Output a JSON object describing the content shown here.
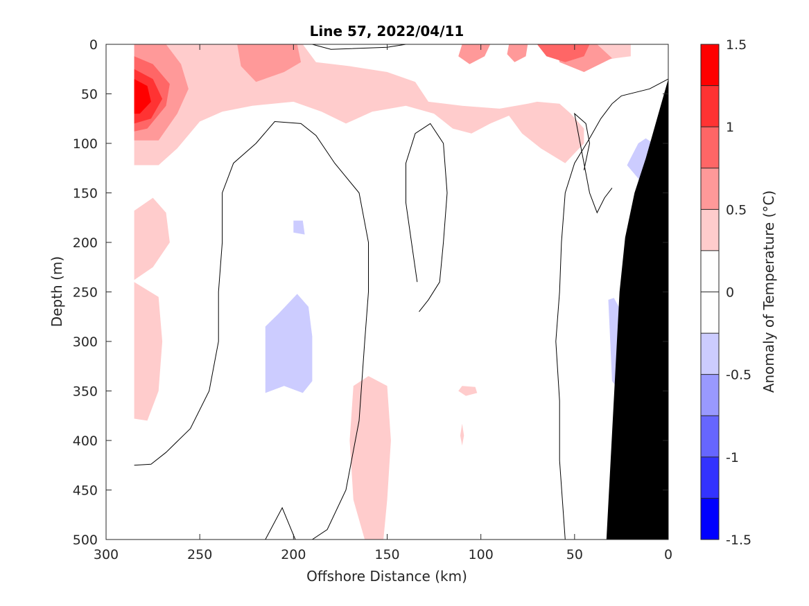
{
  "chart_data": {
    "type": "contour",
    "title": "Line 57, 2022/04/11",
    "xlabel": "Offshore Distance (km)",
    "ylabel": "Depth (m)",
    "xlim": [
      300,
      0
    ],
    "ylim": [
      500,
      0
    ],
    "x_reversed": true,
    "y_reversed": true,
    "xticks": [
      300,
      250,
      200,
      150,
      100,
      50,
      0
    ],
    "yticks": [
      0,
      50,
      100,
      150,
      200,
      250,
      300,
      350,
      400,
      450,
      500
    ],
    "xtick_labels": [
      "300",
      "250",
      "200",
      "150",
      "100",
      "50",
      "0"
    ],
    "ytick_labels": [
      "0",
      "50",
      "100",
      "150",
      "200",
      "250",
      "300",
      "350",
      "400",
      "450",
      "500"
    ],
    "colorbar": {
      "label": "Anomaly of Temperature (°C)",
      "limits": [
        -1.5,
        1.5
      ],
      "ticks": [
        1.5,
        1,
        0.5,
        0,
        -0.5,
        -1,
        -1.5
      ],
      "tick_labels": [
        "1.5",
        "1",
        "0.5",
        "0",
        "-0.5",
        "-1",
        "-1.5"
      ],
      "levels": [
        1.5,
        1.25,
        1.0,
        0.75,
        0.5,
        0.25,
        0,
        -0.25,
        -0.5,
        -0.75,
        -1.0,
        -1.25,
        -1.5
      ],
      "colors": [
        "#ff0000",
        "#ff3333",
        "#ff6666",
        "#ff9999",
        "#ffcccc",
        "#ffffff",
        "#ffffff",
        "#ccccff",
        "#9999ff",
        "#6666ff",
        "#3333ff",
        "#0000ff"
      ]
    },
    "bathymetry_color": "#000000",
    "data_extent_km": [
      285,
      0
    ],
    "bathymetry": [
      [
        33,
        500
      ],
      [
        26,
        250
      ],
      [
        23,
        195
      ],
      [
        18,
        150
      ],
      [
        12,
        115
      ],
      [
        6,
        75
      ],
      [
        0,
        35
      ]
    ],
    "filled_regions": [
      {
        "level": 0.25,
        "points": [
          [
            285,
            0
          ],
          [
            195,
            0
          ],
          [
            188,
            18
          ],
          [
            170,
            22
          ],
          [
            150,
            28
          ],
          [
            135,
            38
          ],
          [
            128,
            58
          ],
          [
            110,
            62
          ],
          [
            90,
            65
          ],
          [
            75,
            60
          ],
          [
            70,
            58
          ],
          [
            58,
            60
          ],
          [
            52,
            70
          ],
          [
            45,
            85
          ],
          [
            45,
            100
          ],
          [
            55,
            120
          ],
          [
            68,
            105
          ],
          [
            78,
            90
          ],
          [
            85,
            72
          ],
          [
            95,
            80
          ],
          [
            105,
            90
          ],
          [
            115,
            85
          ],
          [
            125,
            70
          ],
          [
            140,
            62
          ],
          [
            158,
            68
          ],
          [
            172,
            80
          ],
          [
            185,
            68
          ],
          [
            200,
            58
          ],
          [
            222,
            62
          ],
          [
            238,
            68
          ],
          [
            250,
            78
          ],
          [
            262,
            105
          ],
          [
            272,
            122
          ],
          [
            285,
            122
          ]
        ]
      },
      {
        "level": 0.25,
        "points": [
          [
            115,
            0
          ],
          [
            60,
            0
          ],
          [
            52,
            8
          ],
          [
            40,
            18
          ],
          [
            28,
            14
          ],
          [
            20,
            12
          ],
          [
            20,
            0
          ]
        ]
      },
      {
        "level": 0.5,
        "points": [
          [
            285,
            0
          ],
          [
            268,
            0
          ],
          [
            260,
            20
          ],
          [
            256,
            45
          ],
          [
            262,
            70
          ],
          [
            272,
            97
          ],
          [
            285,
            97
          ]
        ]
      },
      {
        "level": 0.5,
        "points": [
          [
            230,
            0
          ],
          [
            198,
            0
          ],
          [
            196,
            18
          ],
          [
            205,
            28
          ],
          [
            220,
            38
          ],
          [
            228,
            22
          ]
        ]
      },
      {
        "level": 0.5,
        "points": [
          [
            60,
            0
          ],
          [
            38,
            0
          ],
          [
            30,
            14
          ],
          [
            45,
            28
          ],
          [
            58,
            18
          ]
        ]
      },
      {
        "level": 0.5,
        "points": [
          [
            110,
            0
          ],
          [
            95,
            0
          ],
          [
            98,
            12
          ],
          [
            106,
            20
          ],
          [
            112,
            12
          ]
        ]
      },
      {
        "level": 0.5,
        "points": [
          [
            85,
            0
          ],
          [
            75,
            0
          ],
          [
            76,
            12
          ],
          [
            82,
            18
          ],
          [
            86,
            10
          ]
        ]
      },
      {
        "level": 0.75,
        "points": [
          [
            285,
            12
          ],
          [
            275,
            20
          ],
          [
            266,
            40
          ],
          [
            268,
            62
          ],
          [
            278,
            85
          ],
          [
            285,
            88
          ]
        ]
      },
      {
        "level": 0.75,
        "points": [
          [
            70,
            0
          ],
          [
            42,
            0
          ],
          [
            45,
            12
          ],
          [
            55,
            18
          ],
          [
            65,
            12
          ]
        ]
      },
      {
        "level": 1.0,
        "points": [
          [
            285,
            25
          ],
          [
            275,
            35
          ],
          [
            270,
            55
          ],
          [
            276,
            75
          ],
          [
            285,
            80
          ]
        ]
      },
      {
        "level": 1.25,
        "points": [
          [
            285,
            35
          ],
          [
            278,
            42
          ],
          [
            276,
            58
          ],
          [
            282,
            70
          ],
          [
            285,
            70
          ]
        ]
      },
      {
        "level": 0.25,
        "points": [
          [
            285,
            168
          ],
          [
            275,
            155
          ],
          [
            268,
            170
          ],
          [
            266,
            200
          ],
          [
            275,
            225
          ],
          [
            285,
            238
          ]
        ]
      },
      {
        "level": 0.25,
        "points": [
          [
            285,
            240
          ],
          [
            272,
            255
          ],
          [
            270,
            300
          ],
          [
            272,
            350
          ],
          [
            278,
            380
          ],
          [
            285,
            378
          ]
        ]
      },
      {
        "level": 0.25,
        "points": [
          [
            168,
            345
          ],
          [
            160,
            335
          ],
          [
            150,
            345
          ],
          [
            148,
            400
          ],
          [
            150,
            460
          ],
          [
            152,
            500
          ],
          [
            162,
            500
          ],
          [
            168,
            460
          ],
          [
            170,
            400
          ]
        ]
      },
      {
        "level": 0.25,
        "points": [
          [
            110,
            345
          ],
          [
            103,
            346
          ],
          [
            102,
            352
          ],
          [
            108,
            355
          ],
          [
            112,
            350
          ]
        ]
      },
      {
        "level": 0.25,
        "points": [
          [
            110,
            383
          ],
          [
            109,
            395
          ],
          [
            110,
            405
          ],
          [
            111,
            395
          ]
        ]
      },
      {
        "level": -0.25,
        "points": [
          [
            215,
            285
          ],
          [
            208,
            272
          ],
          [
            198,
            252
          ],
          [
            192,
            265
          ],
          [
            190,
            295
          ],
          [
            190,
            340
          ],
          [
            195,
            352
          ],
          [
            205,
            345
          ],
          [
            215,
            352
          ]
        ]
      },
      {
        "level": -0.25,
        "points": [
          [
            200,
            178
          ],
          [
            195,
            178
          ],
          [
            194,
            192
          ],
          [
            200,
            190
          ]
        ]
      },
      {
        "level": -0.25,
        "points": [
          [
            22,
            122
          ],
          [
            16,
            100
          ],
          [
            12,
            95
          ],
          [
            8,
            100
          ],
          [
            14,
            140
          ]
        ]
      },
      {
        "level": -0.25,
        "points": [
          [
            32,
            258
          ],
          [
            29,
            256
          ],
          [
            25,
            270
          ],
          [
            24,
            300
          ],
          [
            26,
            350
          ],
          [
            30,
            340
          ]
        ]
      }
    ],
    "zero_contours": [
      [
        [
          285,
          425
        ],
        [
          276,
          424
        ],
        [
          268,
          412
        ],
        [
          255,
          388
        ],
        [
          245,
          350
        ],
        [
          240,
          300
        ],
        [
          240,
          250
        ],
        [
          238,
          200
        ],
        [
          238,
          150
        ],
        [
          232,
          120
        ],
        [
          220,
          100
        ],
        [
          210,
          78
        ],
        [
          196,
          80
        ],
        [
          188,
          92
        ],
        [
          178,
          120
        ],
        [
          165,
          150
        ],
        [
          160,
          200
        ],
        [
          160,
          250
        ],
        [
          162,
          300
        ],
        [
          165,
          380
        ],
        [
          172,
          450
        ],
        [
          182,
          490
        ],
        [
          190,
          500
        ]
      ],
      [
        [
          215,
          500
        ],
        [
          206,
          468
        ],
        [
          199,
          500
        ]
      ],
      [
        [
          133,
          270
        ],
        [
          128,
          258
        ],
        [
          122,
          240
        ],
        [
          120,
          200
        ],
        [
          118,
          150
        ],
        [
          120,
          100
        ],
        [
          127,
          80
        ],
        [
          135,
          90
        ],
        [
          140,
          120
        ],
        [
          140,
          160
        ],
        [
          137,
          200
        ],
        [
          134,
          240
        ]
      ],
      [
        [
          55,
          500
        ],
        [
          58,
          420
        ],
        [
          58,
          360
        ],
        [
          60,
          300
        ],
        [
          58,
          250
        ],
        [
          57,
          200
        ],
        [
          55,
          150
        ],
        [
          50,
          120
        ],
        [
          42,
          95
        ],
        [
          36,
          75
        ],
        [
          30,
          60
        ],
        [
          25,
          52
        ],
        [
          10,
          45
        ],
        [
          0,
          35
        ]
      ],
      [
        [
          45,
          127
        ],
        [
          42,
          100
        ],
        [
          44,
          80
        ],
        [
          50,
          70
        ],
        [
          42,
          150
        ],
        [
          38,
          170
        ],
        [
          34,
          155
        ],
        [
          30,
          145
        ]
      ],
      [
        [
          190,
          0
        ],
        [
          180,
          5
        ],
        [
          150,
          3
        ],
        [
          140,
          0
        ]
      ]
    ]
  }
}
